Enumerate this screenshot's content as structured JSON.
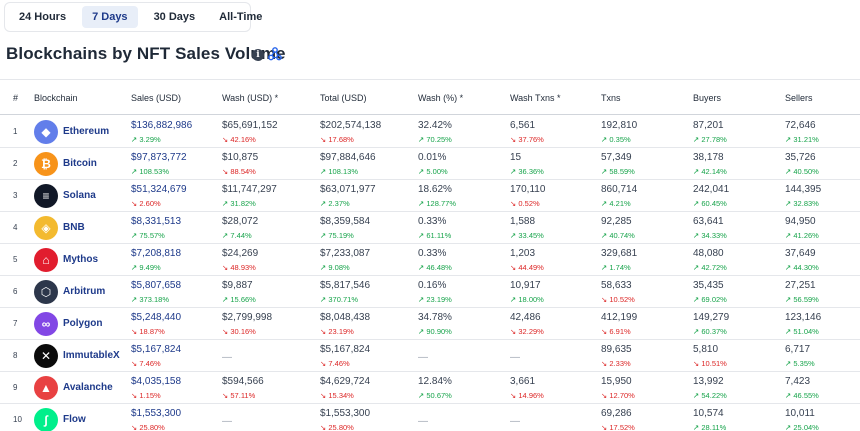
{
  "range_tabs": [
    {
      "label": "24 Hours",
      "active": false
    },
    {
      "label": "7 Days",
      "active": true
    },
    {
      "label": "30 Days",
      "active": false
    },
    {
      "label": "All-Time",
      "active": false
    }
  ],
  "title": "Blockchains by NFT Sales Volume",
  "info_icon_glyph": "i",
  "columns": [
    "#",
    "Blockchain",
    "Sales (USD)",
    "Wash (USD) *",
    "Total (USD)",
    "Wash (%) *",
    "Wash Txns *",
    "Txns",
    "Buyers",
    "Sellers"
  ],
  "up_arrow": "↗",
  "down_arrow": "↘",
  "rows": [
    {
      "rank": "1",
      "name": "Ethereum",
      "logo_color": "#627eea",
      "logo_glyph": "◆",
      "sales": {
        "v": "$136,882,986",
        "c": "3.29%",
        "d": "up"
      },
      "wash_usd": {
        "v": "$65,691,152",
        "c": "42.16%",
        "d": "down"
      },
      "total": {
        "v": "$202,574,138",
        "c": "17.68%",
        "d": "down"
      },
      "wash_pct": {
        "v": "32.42%",
        "c": "70.25%",
        "d": "up"
      },
      "wash_txns": {
        "v": "6,561",
        "c": "37.76%",
        "d": "down"
      },
      "txns": {
        "v": "192,810",
        "c": "0.35%",
        "d": "up"
      },
      "buyers": {
        "v": "87,201",
        "c": "27.78%",
        "d": "up"
      },
      "sellers": {
        "v": "72,646",
        "c": "31.21%",
        "d": "up"
      }
    },
    {
      "rank": "2",
      "name": "Bitcoin",
      "logo_color": "#f7931a",
      "logo_glyph": "₿",
      "sales": {
        "v": "$97,873,772",
        "c": "108.53%",
        "d": "up"
      },
      "wash_usd": {
        "v": "$10,875",
        "c": "88.54%",
        "d": "down"
      },
      "total": {
        "v": "$97,884,646",
        "c": "108.13%",
        "d": "up"
      },
      "wash_pct": {
        "v": "0.01%",
        "c": "5.00%",
        "d": "up"
      },
      "wash_txns": {
        "v": "15",
        "c": "36.36%",
        "d": "up"
      },
      "txns": {
        "v": "57,349",
        "c": "58.59%",
        "d": "up"
      },
      "buyers": {
        "v": "38,178",
        "c": "42.14%",
        "d": "up"
      },
      "sellers": {
        "v": "35,726",
        "c": "40.50%",
        "d": "up"
      }
    },
    {
      "rank": "3",
      "name": "Solana",
      "logo_color": "#111827",
      "logo_glyph": "≡",
      "sales": {
        "v": "$51,324,679",
        "c": "2.60%",
        "d": "down"
      },
      "wash_usd": {
        "v": "$11,747,297",
        "c": "31.82%",
        "d": "up"
      },
      "total": {
        "v": "$63,071,977",
        "c": "2.37%",
        "d": "up"
      },
      "wash_pct": {
        "v": "18.62%",
        "c": "128.77%",
        "d": "up"
      },
      "wash_txns": {
        "v": "170,110",
        "c": "0.52%",
        "d": "down"
      },
      "txns": {
        "v": "860,714",
        "c": "4.21%",
        "d": "up"
      },
      "buyers": {
        "v": "242,041",
        "c": "60.45%",
        "d": "up"
      },
      "sellers": {
        "v": "144,395",
        "c": "32.83%",
        "d": "up"
      }
    },
    {
      "rank": "4",
      "name": "BNB",
      "logo_color": "#f3ba2f",
      "logo_glyph": "◈",
      "sales": {
        "v": "$8,331,513",
        "c": "75.57%",
        "d": "up"
      },
      "wash_usd": {
        "v": "$28,072",
        "c": "7.44%",
        "d": "up"
      },
      "total": {
        "v": "$8,359,584",
        "c": "75.19%",
        "d": "up"
      },
      "wash_pct": {
        "v": "0.33%",
        "c": "61.11%",
        "d": "up"
      },
      "wash_txns": {
        "v": "1,588",
        "c": "33.45%",
        "d": "up"
      },
      "txns": {
        "v": "92,285",
        "c": "40.74%",
        "d": "up"
      },
      "buyers": {
        "v": "63,641",
        "c": "34.33%",
        "d": "up"
      },
      "sellers": {
        "v": "94,950",
        "c": "41.26%",
        "d": "up"
      }
    },
    {
      "rank": "5",
      "name": "Mythos",
      "logo_color": "#e11d2e",
      "logo_glyph": "⌂",
      "sales": {
        "v": "$7,208,818",
        "c": "9.49%",
        "d": "up"
      },
      "wash_usd": {
        "v": "$24,269",
        "c": "48.93%",
        "d": "down"
      },
      "total": {
        "v": "$7,233,087",
        "c": "9.08%",
        "d": "up"
      },
      "wash_pct": {
        "v": "0.33%",
        "c": "46.48%",
        "d": "up"
      },
      "wash_txns": {
        "v": "1,203",
        "c": "44.49%",
        "d": "down"
      },
      "txns": {
        "v": "329,681",
        "c": "1.74%",
        "d": "up"
      },
      "buyers": {
        "v": "48,080",
        "c": "42.72%",
        "d": "up"
      },
      "sellers": {
        "v": "37,649",
        "c": "44.30%",
        "d": "up"
      }
    },
    {
      "rank": "6",
      "name": "Arbitrum",
      "logo_color": "#2d374b",
      "logo_glyph": "⬡",
      "sales": {
        "v": "$5,807,658",
        "c": "373.18%",
        "d": "up"
      },
      "wash_usd": {
        "v": "$9,887",
        "c": "15.66%",
        "d": "up"
      },
      "total": {
        "v": "$5,817,546",
        "c": "370.71%",
        "d": "up"
      },
      "wash_pct": {
        "v": "0.16%",
        "c": "23.19%",
        "d": "up"
      },
      "wash_txns": {
        "v": "10,917",
        "c": "18.00%",
        "d": "up"
      },
      "txns": {
        "v": "58,633",
        "c": "10.52%",
        "d": "down"
      },
      "buyers": {
        "v": "35,435",
        "c": "69.02%",
        "d": "up"
      },
      "sellers": {
        "v": "27,251",
        "c": "56.59%",
        "d": "up"
      }
    },
    {
      "rank": "7",
      "name": "Polygon",
      "logo_color": "#8247e5",
      "logo_glyph": "∞",
      "sales": {
        "v": "$5,248,440",
        "c": "18.87%",
        "d": "down"
      },
      "wash_usd": {
        "v": "$2,799,998",
        "c": "30.16%",
        "d": "down"
      },
      "total": {
        "v": "$8,048,438",
        "c": "23.19%",
        "d": "down"
      },
      "wash_pct": {
        "v": "34.78%",
        "c": "90.90%",
        "d": "up"
      },
      "wash_txns": {
        "v": "42,486",
        "c": "32.29%",
        "d": "down"
      },
      "txns": {
        "v": "412,199",
        "c": "6.91%",
        "d": "down"
      },
      "buyers": {
        "v": "149,279",
        "c": "60.37%",
        "d": "up"
      },
      "sellers": {
        "v": "123,146",
        "c": "51.04%",
        "d": "up"
      }
    },
    {
      "rank": "8",
      "name": "ImmutableX",
      "logo_color": "#0b0b0b",
      "logo_glyph": "✕",
      "sales": {
        "v": "$5,167,824",
        "c": "7.46%",
        "d": "down"
      },
      "wash_usd": {
        "v": "—",
        "c": "",
        "d": "none"
      },
      "total": {
        "v": "$5,167,824",
        "c": "7.46%",
        "d": "down"
      },
      "wash_pct": {
        "v": "—",
        "c": "",
        "d": "none"
      },
      "wash_txns": {
        "v": "—",
        "c": "",
        "d": "none"
      },
      "txns": {
        "v": "89,635",
        "c": "2.33%",
        "d": "down"
      },
      "buyers": {
        "v": "5,810",
        "c": "10.51%",
        "d": "down"
      },
      "sellers": {
        "v": "6,717",
        "c": "5.35%",
        "d": "up"
      }
    },
    {
      "rank": "9",
      "name": "Avalanche",
      "logo_color": "#e84142",
      "logo_glyph": "▲",
      "sales": {
        "v": "$4,035,158",
        "c": "1.15%",
        "d": "down"
      },
      "wash_usd": {
        "v": "$594,566",
        "c": "57.11%",
        "d": "down"
      },
      "total": {
        "v": "$4,629,724",
        "c": "15.34%",
        "d": "down"
      },
      "wash_pct": {
        "v": "12.84%",
        "c": "50.67%",
        "d": "up"
      },
      "wash_txns": {
        "v": "3,661",
        "c": "14.96%",
        "d": "down"
      },
      "txns": {
        "v": "15,950",
        "c": "12.70%",
        "d": "down"
      },
      "buyers": {
        "v": "13,992",
        "c": "54.22%",
        "d": "up"
      },
      "sellers": {
        "v": "7,423",
        "c": "46.55%",
        "d": "up"
      }
    },
    {
      "rank": "10",
      "name": "Flow",
      "logo_color": "#00ef8b",
      "logo_glyph": "∫",
      "sales": {
        "v": "$1,553,300",
        "c": "25.80%",
        "d": "down"
      },
      "wash_usd": {
        "v": "—",
        "c": "",
        "d": "none"
      },
      "total": {
        "v": "$1,553,300",
        "c": "25.80%",
        "d": "down"
      },
      "wash_pct": {
        "v": "—",
        "c": "",
        "d": "none"
      },
      "wash_txns": {
        "v": "—",
        "c": "",
        "d": "none"
      },
      "txns": {
        "v": "69,286",
        "c": "17.52%",
        "d": "down"
      },
      "buyers": {
        "v": "10,574",
        "c": "28.11%",
        "d": "up"
      },
      "sellers": {
        "v": "10,011",
        "c": "25.04%",
        "d": "up"
      }
    }
  ]
}
